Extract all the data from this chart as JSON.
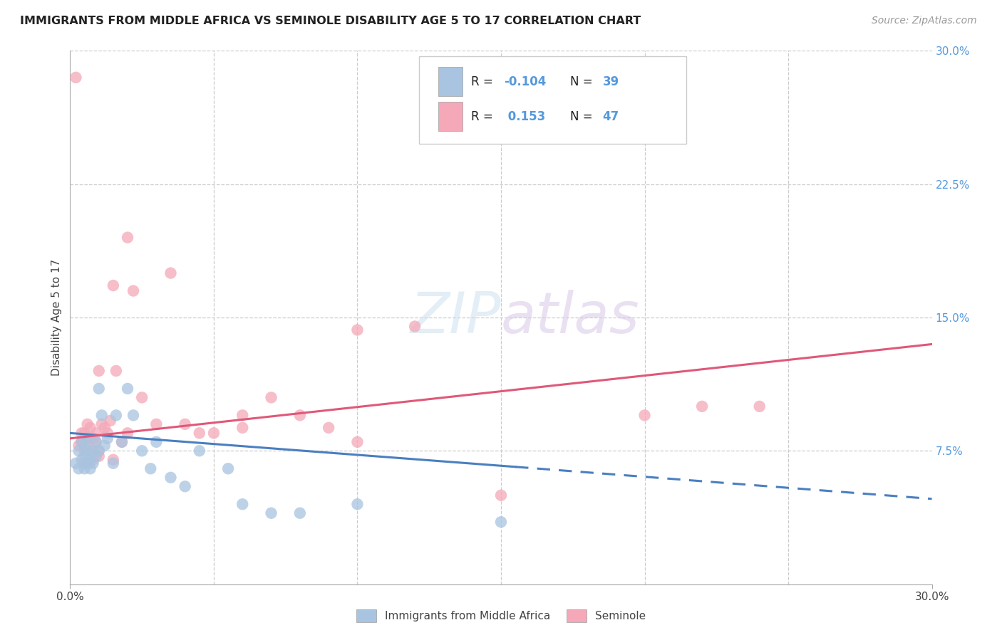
{
  "title": "IMMIGRANTS FROM MIDDLE AFRICA VS SEMINOLE DISABILITY AGE 5 TO 17 CORRELATION CHART",
  "source": "Source: ZipAtlas.com",
  "ylabel": "Disability Age 5 to 17",
  "xmin": 0.0,
  "xmax": 0.3,
  "ymin": 0.0,
  "ymax": 0.3,
  "ytick_labels_right": [
    "7.5%",
    "15.0%",
    "22.5%",
    "30.0%"
  ],
  "ytick_positions_right": [
    0.075,
    0.15,
    0.225,
    0.3
  ],
  "blue_color": "#a8c4e0",
  "pink_color": "#f4a8b8",
  "trend_blue_color": "#4a7fc1",
  "trend_pink_color": "#e05878",
  "watermark_color": "#cce0f0",
  "blue_scatter_x": [
    0.002,
    0.003,
    0.003,
    0.004,
    0.004,
    0.005,
    0.005,
    0.005,
    0.006,
    0.006,
    0.006,
    0.007,
    0.007,
    0.008,
    0.008,
    0.009,
    0.009,
    0.01,
    0.01,
    0.011,
    0.012,
    0.013,
    0.015,
    0.016,
    0.018,
    0.02,
    0.022,
    0.025,
    0.028,
    0.03,
    0.035,
    0.04,
    0.045,
    0.055,
    0.06,
    0.07,
    0.08,
    0.1,
    0.15
  ],
  "blue_scatter_y": [
    0.068,
    0.075,
    0.065,
    0.07,
    0.08,
    0.072,
    0.065,
    0.078,
    0.068,
    0.075,
    0.082,
    0.07,
    0.065,
    0.075,
    0.068,
    0.08,
    0.072,
    0.11,
    0.075,
    0.095,
    0.078,
    0.082,
    0.068,
    0.095,
    0.08,
    0.11,
    0.095,
    0.075,
    0.065,
    0.08,
    0.06,
    0.055,
    0.075,
    0.065,
    0.045,
    0.04,
    0.04,
    0.045,
    0.035
  ],
  "pink_scatter_x": [
    0.002,
    0.003,
    0.004,
    0.004,
    0.005,
    0.005,
    0.006,
    0.006,
    0.007,
    0.007,
    0.008,
    0.008,
    0.009,
    0.009,
    0.01,
    0.01,
    0.011,
    0.012,
    0.013,
    0.014,
    0.015,
    0.016,
    0.018,
    0.02,
    0.022,
    0.025,
    0.03,
    0.035,
    0.04,
    0.045,
    0.05,
    0.06,
    0.07,
    0.08,
    0.09,
    0.1,
    0.12,
    0.15,
    0.2,
    0.22,
    0.24,
    0.005,
    0.01,
    0.015,
    0.02,
    0.06,
    0.1
  ],
  "pink_scatter_y": [
    0.285,
    0.078,
    0.08,
    0.085,
    0.075,
    0.085,
    0.08,
    0.09,
    0.075,
    0.088,
    0.082,
    0.07,
    0.085,
    0.08,
    0.12,
    0.075,
    0.09,
    0.088,
    0.085,
    0.092,
    0.168,
    0.12,
    0.08,
    0.195,
    0.165,
    0.105,
    0.09,
    0.175,
    0.09,
    0.085,
    0.085,
    0.095,
    0.105,
    0.095,
    0.088,
    0.08,
    0.145,
    0.05,
    0.095,
    0.1,
    0.1,
    0.068,
    0.072,
    0.07,
    0.085,
    0.088,
    0.143
  ],
  "trend_blue_x_start": 0.0,
  "trend_blue_x_solid_end": 0.155,
  "trend_blue_x_end": 0.3,
  "trend_blue_y_start": 0.085,
  "trend_blue_y_solid_end": 0.066,
  "trend_blue_y_end": 0.048,
  "trend_pink_x_start": 0.0,
  "trend_pink_x_end": 0.3,
  "trend_pink_y_start": 0.082,
  "trend_pink_y_end": 0.135
}
